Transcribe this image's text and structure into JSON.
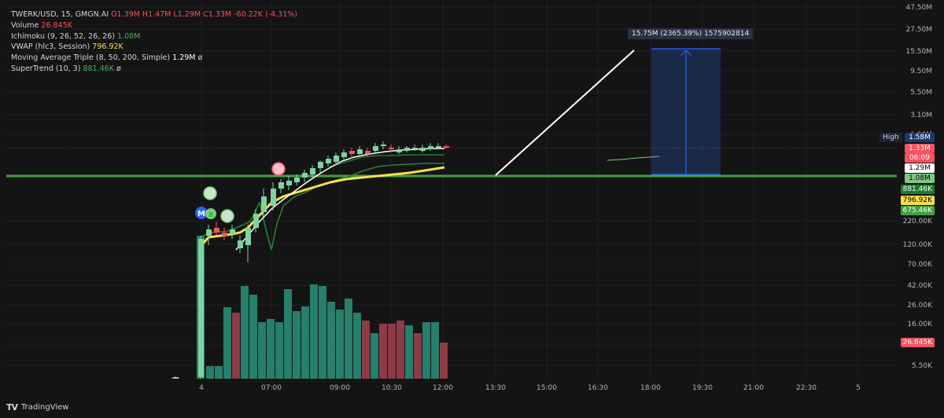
{
  "legend": {
    "symbol": "TWERK/USD, 15, GMGN.AI",
    "ohlc": "O1.39M  H1.47M  L1.29M  C1.33M  -60.22K (-4.31%)",
    "volume_label": "Volume",
    "volume_value": "26.845K",
    "ichimoku_label": "Ichimoku (9, 26, 52, 26, 26)",
    "ichimoku_value": "1.08M",
    "vwap_label": "VWAP (hlc3, Session)",
    "vwap_value": "796.92K",
    "ma_label": "Moving Average Triple (8, 50, 200, Simple)",
    "ma_value": "1.29M",
    "ma_extra": "ø",
    "supertrend_label": "SuperTrend (10, 3)",
    "supertrend_value": "881.46K",
    "supertrend_extra": "ø"
  },
  "measure_label": "15.75M (2365.39%) 1575902814",
  "high_label": "High",
  "price_axis": [
    "47.50M",
    "27.50M",
    "15.50M",
    "9.50M",
    "5.50M",
    "3.10M",
    "1.90M",
    "220.00K",
    "120.00K",
    "70.00K",
    "42.00K",
    "26.00K",
    "16.00K",
    "9.00K",
    "5.50K"
  ],
  "time_axis": [
    "4",
    "07:00",
    "09:00",
    "10:30",
    "12:00",
    "13:30",
    "15:00",
    "16:30",
    "18:00",
    "19:30",
    "21:00",
    "22:30",
    "5"
  ],
  "price_tags": [
    {
      "label": "1.58M",
      "bg": "#1e3a6e",
      "fg": "#ffffff"
    },
    {
      "label": "1.33M",
      "bg": "#f7525f",
      "fg": "#ffffff"
    },
    {
      "label": "06:09",
      "bg": "#f7525f",
      "fg": "#ffffff"
    },
    {
      "label": "1.29M",
      "bg": "#ffffff",
      "fg": "#000000"
    },
    {
      "label": "1.08M",
      "bg": "#81c784",
      "fg": "#000000"
    },
    {
      "label": "881.46K",
      "bg": "#1b7b2e",
      "fg": "#ffffff"
    },
    {
      "label": "796.92K",
      "bg": "#f5e04a",
      "fg": "#000000"
    },
    {
      "label": "675.46K",
      "bg": "#43a047",
      "fg": "#ffffff"
    },
    {
      "label": "26.845K",
      "bg": "#f7525f",
      "fg": "#ffffff"
    }
  ],
  "markers": [
    {
      "label": "M",
      "color": "#2962ff"
    },
    {
      "label": "B",
      "color": "#81c784"
    }
  ],
  "footer": {
    "brand": "TradingView",
    "logo": "TV"
  },
  "colors": {
    "up": "#7fd3a0",
    "down": "#f7525f",
    "vol_up": "#26806b",
    "vol_down": "#8e3b46",
    "vwap": "#f5e04a",
    "ma": "#ffffff",
    "ichimoku": "#2e7d32",
    "supertrend": "#1b7b2e",
    "measure_fill": "#1f3a73",
    "measure_line": "#2962ff"
  },
  "chart_data": {
    "type": "candlestick",
    "session_open_price": "1.39M",
    "session_high": "1.47M",
    "session_low": "1.29M",
    "last_close": "1.33M",
    "change": "-60.22K",
    "change_pct": "-4.31%",
    "last_volume": "26.845K",
    "high_line_price": "1.58M",
    "measure_target": "15.75M",
    "measure_pct": "2365.39%"
  }
}
